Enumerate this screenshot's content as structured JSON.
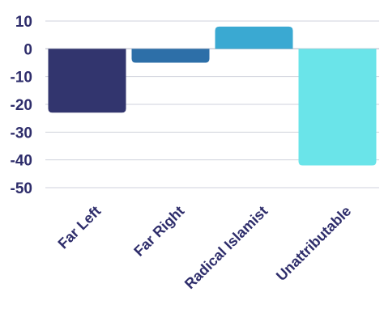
{
  "chart_data": {
    "type": "bar",
    "title": "",
    "xlabel": "",
    "ylabel": "",
    "categories": [
      "Far Left",
      "Far Right",
      "Radical Islamist",
      "Unattributable"
    ],
    "values": [
      -23,
      -5,
      8,
      -42
    ],
    "colors": [
      "#32356e",
      "#2d6fa8",
      "#3aa9d2",
      "#6ae4e9"
    ],
    "ylim": [
      -50,
      10
    ],
    "yticks": [
      10,
      0,
      -10,
      -20,
      -30,
      -40,
      -50
    ],
    "ytick_labels": [
      "10",
      "0",
      "-10",
      "-20",
      "-30",
      "-40",
      "-50"
    ],
    "grid": true,
    "legend": "none"
  }
}
